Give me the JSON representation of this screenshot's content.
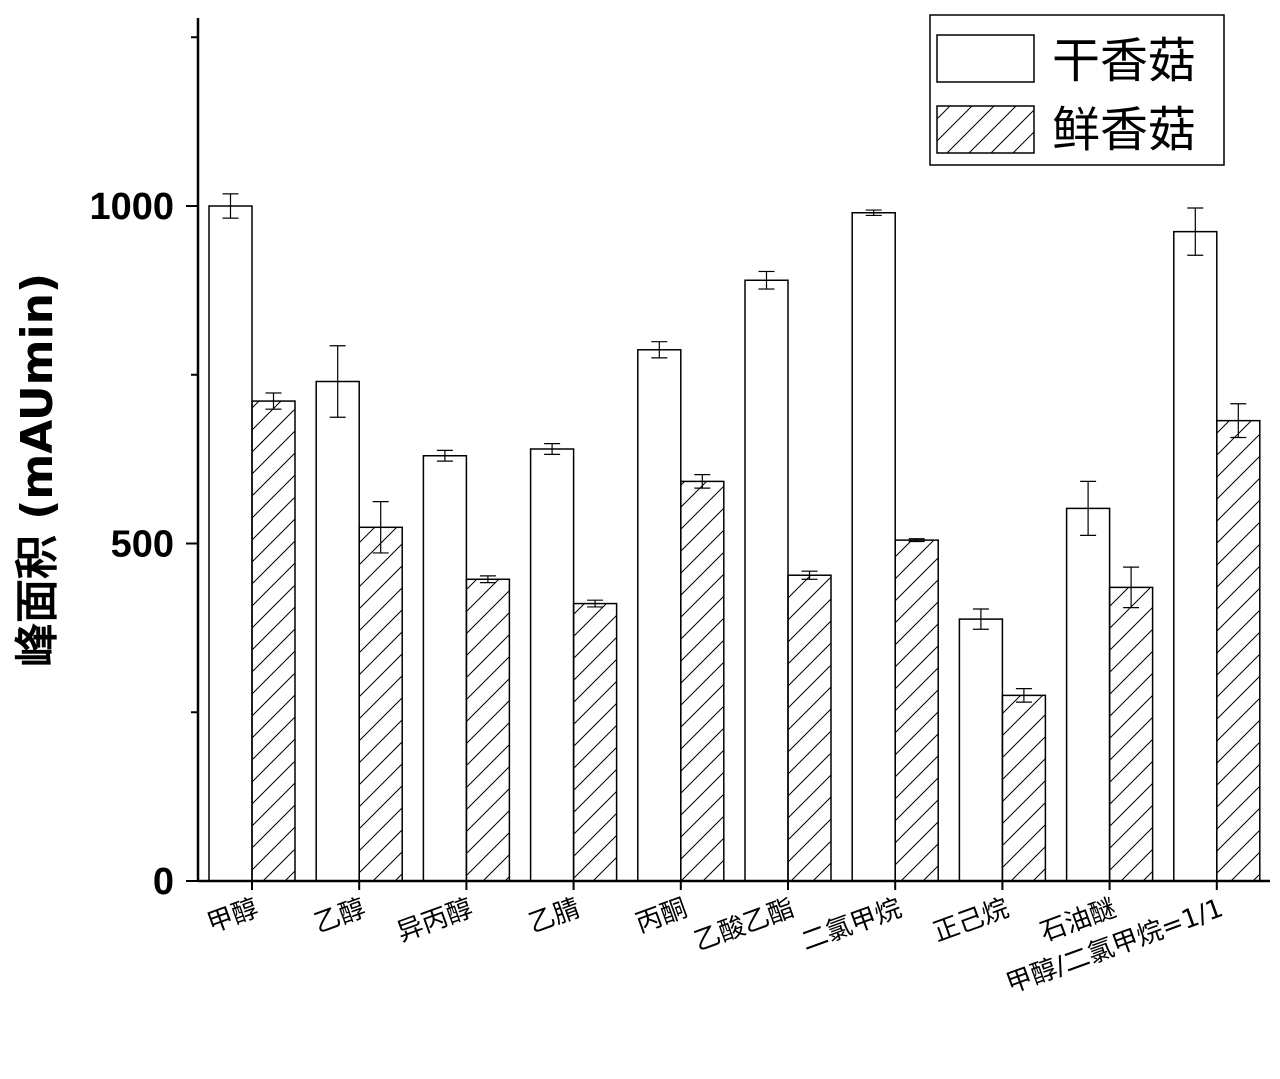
{
  "chart_data": {
    "type": "bar",
    "ylabel": "峰面积 (mAUmin)",
    "xlabel": "",
    "ylim": [
      0,
      1250
    ],
    "yticks": [
      0,
      500,
      1000
    ],
    "categories": [
      "甲醇",
      "乙醇",
      "异丙醇",
      "乙腈",
      "丙酮",
      "乙酸乙酯",
      "二氯甲烷",
      "正己烷",
      "石油醚",
      "甲醇/二氯甲烷=1/1"
    ],
    "series": [
      {
        "name": "干香菇",
        "fill": "plain",
        "values": [
          1000,
          740,
          630,
          640,
          787,
          890,
          990,
          388,
          552,
          962
        ],
        "errors": [
          18,
          53,
          8,
          8,
          12,
          13,
          4,
          15,
          40,
          35
        ]
      },
      {
        "name": "鲜香菇",
        "fill": "hatched",
        "values": [
          711,
          524,
          447,
          411,
          592,
          453,
          505,
          275,
          435,
          682
        ],
        "errors": [
          12,
          38,
          5,
          5,
          10,
          6,
          2,
          10,
          30,
          25
        ]
      }
    ],
    "legend": "top-right",
    "grid": false,
    "colors": {
      "bar_fill": "#ffffff",
      "bar_stroke": "#000000",
      "hatch": "#000000"
    }
  }
}
